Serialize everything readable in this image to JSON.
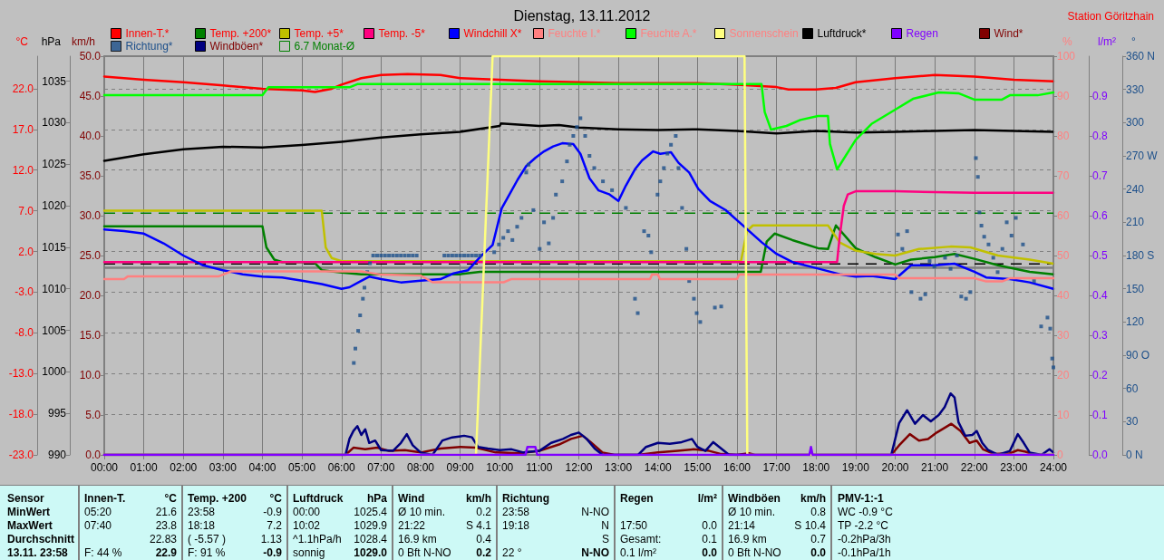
{
  "chart_data": [
    {
      "type": "line",
      "title": "Dienstag, 13.11.2012",
      "subtitle": "Station Göritzhain",
      "ylabel": "°C",
      "y2label": "hPa",
      "y3label": "km/h",
      "xlim": [
        0,
        24
      ],
      "xticks": [
        {
          "value": 0,
          "label": "00:00"
        },
        {
          "value": 1,
          "label": "01:00"
        },
        {
          "value": 2,
          "label": "02:00"
        },
        {
          "value": 3,
          "label": "03:00"
        },
        {
          "value": 4,
          "label": "04:00"
        },
        {
          "value": 5,
          "label": "05:00"
        },
        {
          "value": 6,
          "label": "06:00"
        },
        {
          "value": 7,
          "label": "07:00"
        },
        {
          "value": 8,
          "label": "08:00"
        },
        {
          "value": 9,
          "label": "09:00"
        },
        {
          "value": 10,
          "label": "10:00"
        },
        {
          "value": 11,
          "label": "11:00"
        },
        {
          "value": 12,
          "label": "12:00"
        },
        {
          "value": 13,
          "label": "13:00"
        },
        {
          "value": 14,
          "label": "14:00"
        },
        {
          "value": 15,
          "label": "15:00"
        },
        {
          "value": 16,
          "label": "16:00"
        },
        {
          "value": 17,
          "label": "17:00"
        },
        {
          "value": 18,
          "label": "18:00"
        },
        {
          "value": 19,
          "label": "19:00"
        },
        {
          "value": 20,
          "label": "20:00"
        },
        {
          "value": 21,
          "label": "21:00"
        },
        {
          "value": 22,
          "label": "22:00"
        },
        {
          "value": 23,
          "label": "23:00"
        },
        {
          "value": 24,
          "label": "24:00"
        }
      ],
      "ylim": [
        -23,
        26
      ],
      "yticks": [
        {
          "value": -23,
          "label": "-23.0"
        },
        {
          "value": -18,
          "label": "-18.0"
        },
        {
          "value": -13,
          "label": "-13.0"
        },
        {
          "value": -8,
          "label": "-8.0"
        },
        {
          "value": -3,
          "label": "-3.0"
        },
        {
          "value": 2,
          "label": "2.0"
        },
        {
          "value": 7,
          "label": "7.0"
        },
        {
          "value": 12,
          "label": "12.0"
        },
        {
          "value": 17,
          "label": "17.0"
        },
        {
          "value": 22,
          "label": "22.0"
        }
      ],
      "y2lim": [
        990,
        1038
      ],
      "y2ticks": [
        990,
        995,
        1000,
        1005,
        1010,
        1015,
        1020,
        1025,
        1030,
        1035
      ],
      "y3lim": [
        0,
        50
      ],
      "y3ticks": [
        {
          "value": 0,
          "label": "0.0"
        },
        {
          "value": 5,
          "label": "5.0"
        },
        {
          "value": 10,
          "label": "10.0"
        },
        {
          "value": 15,
          "label": "15.0"
        },
        {
          "value": 20,
          "label": "20.0"
        },
        {
          "value": 25,
          "label": "25.0"
        },
        {
          "value": 30,
          "label": "30.0"
        },
        {
          "value": 35,
          "label": "35.0"
        },
        {
          "value": 40,
          "label": "40.0"
        },
        {
          "value": 45,
          "label": "45.0"
        },
        {
          "value": 50,
          "label": "50.0"
        }
      ],
      "grid": true,
      "legend": "top",
      "marker": "none",
      "series": [
        {
          "name": "Innen-T.*",
          "color": "#ff0000",
          "x": [
            0,
            1,
            2,
            3,
            4,
            5,
            5.33,
            5.75,
            6,
            6.5,
            7,
            7.67,
            8.5,
            9,
            10,
            11,
            12,
            13,
            14,
            15,
            16,
            17,
            17.3,
            18,
            18.5,
            19,
            20,
            21,
            22,
            23,
            24
          ],
          "values": [
            23.5,
            23.1,
            22.8,
            22.4,
            22.0,
            21.8,
            21.6,
            22.0,
            22.5,
            23.3,
            23.7,
            23.8,
            23.7,
            23.3,
            23.1,
            22.9,
            22.8,
            22.7,
            22.7,
            22.7,
            22.5,
            22.2,
            21.9,
            21.9,
            22.1,
            22.8,
            23.3,
            23.7,
            23.5,
            23.1,
            22.9
          ]
        },
        {
          "name": "Temp. +200*",
          "color": "#008000",
          "x": [
            0,
            4,
            4.1,
            4.3,
            4.5,
            5.3,
            5.5,
            6,
            6.5,
            9,
            9.5,
            12,
            14,
            16,
            16.6,
            16.75,
            16.95,
            17.4,
            18.05,
            18.3,
            18.5,
            19,
            19.5,
            20,
            20.4,
            21,
            21.5,
            22,
            22.6,
            23.4,
            24
          ],
          "values": [
            5.1,
            5.1,
            2.5,
            1.0,
            0.7,
            0.7,
            -0.3,
            -0.6,
            -0.8,
            -0.8,
            -0.5,
            -0.5,
            -0.5,
            -0.5,
            -0.5,
            3.2,
            4.2,
            3.4,
            2.4,
            2.3,
            5.2,
            2.4,
            1.3,
            0.4,
            1.0,
            1.3,
            1.7,
            1.1,
            0.3,
            -0.5,
            -0.8
          ]
        },
        {
          "name": "Temp. +5*",
          "color": "#c0c000",
          "x": [
            0,
            5.5,
            5.6,
            5.75,
            6,
            9,
            12,
            16.1,
            16.25,
            16.4,
            17,
            18,
            18.3,
            18.4,
            18.6,
            19,
            19.5,
            20,
            20.6,
            21.4,
            21.9,
            22.6,
            23.4,
            24
          ],
          "values": [
            7.0,
            7.0,
            2.5,
            1.2,
            0.8,
            0.8,
            0.8,
            0.8,
            4.5,
            5.2,
            5.2,
            5.2,
            5.2,
            4.5,
            3.1,
            2.1,
            1.7,
            1.5,
            2.3,
            2.6,
            2.5,
            1.5,
            1.0,
            0.5
          ]
        },
        {
          "name": "Temp. -5*",
          "color": "#ff0080",
          "x": [
            0,
            18.53,
            18.6,
            18.7,
            18.8,
            19,
            20,
            21,
            22,
            23,
            24
          ],
          "values": [
            0.7,
            0.7,
            4.0,
            7.6,
            9.0,
            9.4,
            9.4,
            9.3,
            9.2,
            9.2,
            9.2
          ]
        },
        {
          "name": "Windchill X*",
          "color": "#0000ff",
          "x": [
            0,
            0.5,
            1,
            1.5,
            2,
            2.5,
            3,
            3.5,
            4,
            4.5,
            5,
            5.5,
            6,
            6.2,
            6.5,
            6.7,
            7,
            7.5,
            8,
            8.5,
            8.83,
            9.2,
            9.52,
            9.82,
            10.05,
            10.21,
            10.45,
            10.67,
            10.9,
            11.12,
            11.35,
            11.58,
            11.86,
            12.04,
            12.27,
            12.5,
            12.78,
            13.0,
            13.19,
            13.42,
            13.6,
            13.88,
            14.06,
            14.33,
            14.52,
            14.79,
            15.02,
            15.32,
            15.71,
            16.17,
            16.63,
            17.0,
            17.4,
            18.05,
            18.6,
            19.0,
            19.4,
            20.0,
            20.4,
            21.0,
            21.5,
            22.0,
            22.3,
            22.9,
            23.4,
            24
          ],
          "values": [
            4.7,
            4.5,
            4.2,
            3.0,
            1.5,
            0.3,
            -0.3,
            -0.8,
            -1.1,
            -1.2,
            -1.6,
            -2.0,
            -2.6,
            -2.4,
            -1.6,
            -1.1,
            -1.4,
            -1.8,
            -1.6,
            -1.4,
            -0.7,
            -0.3,
            1.4,
            2.8,
            7.3,
            8.7,
            10.8,
            12.5,
            13.5,
            14.3,
            14.9,
            15.3,
            15.2,
            14.0,
            11.0,
            9.5,
            9.0,
            8.2,
            10.1,
            12.1,
            13.2,
            14.3,
            14.0,
            14.2,
            12.9,
            11.7,
            9.7,
            8.2,
            7.1,
            5.1,
            3.1,
            1.7,
            0.7,
            -0.1,
            -0.8,
            -1.1,
            -1.0,
            -1.4,
            0.3,
            0.3,
            0.5,
            -0.5,
            -1.2,
            -1.4,
            -1.8,
            -2.6
          ]
        },
        {
          "name": "Luftdruck*",
          "color": "#000000",
          "axis": "y2",
          "x": [
            0,
            1,
            2,
            3,
            4,
            5,
            6,
            7,
            8,
            9,
            10,
            10.03,
            11,
            11.5,
            12,
            13,
            14,
            15,
            16,
            17,
            18,
            19,
            20,
            21,
            22,
            23,
            24
          ],
          "values": [
            1025.4,
            1026.2,
            1026.8,
            1027.1,
            1027.0,
            1027.3,
            1027.7,
            1028.2,
            1028.6,
            1028.9,
            1029.6,
            1029.9,
            1029.6,
            1029.7,
            1029.4,
            1029.2,
            1029.1,
            1029.2,
            1029.0,
            1028.7,
            1029.0,
            1028.8,
            1028.9,
            1029.0,
            1029.1,
            1029.0,
            1028.9
          ]
        },
        {
          "name": "Wind*",
          "color": "#800000",
          "axis": "y3",
          "x": [
            0,
            6.1,
            6.3,
            6.6,
            6.9,
            7.2,
            7.6,
            8.0,
            8.5,
            9.0,
            9.4,
            9.9,
            10.5,
            11.0,
            11.5,
            11.8,
            12.1,
            12.3,
            12.6,
            12.9,
            13.5,
            14.0,
            14.5,
            14.9,
            15.3,
            15.6,
            16.0,
            16.3,
            16.45,
            19.9,
            20.1,
            20.37,
            20.6,
            20.83,
            21.05,
            21.25,
            21.42,
            21.65,
            21.88,
            22.06,
            22.22,
            22.5,
            22.9,
            23.1,
            23.3,
            23.5,
            24
          ],
          "values": [
            0,
            0,
            0.9,
            0.7,
            0.9,
            0.5,
            0.6,
            0.3,
            0.8,
            1.0,
            0.9,
            0.3,
            0.2,
            0.5,
            1.3,
            2.0,
            2.4,
            1.6,
            0.3,
            0,
            0,
            0.3,
            0.5,
            0.7,
            0.5,
            0.1,
            0,
            0.2,
            0,
            0,
            1.2,
            2.6,
            1.8,
            2.0,
            2.8,
            3.4,
            3.9,
            3.0,
            1.5,
            1.8,
            0.7,
            0.1,
            0.2,
            0.6,
            0.4,
            0,
            0
          ]
        },
        {
          "name": "Windböen*",
          "color": "#000080",
          "axis": "y3",
          "x": [
            0,
            6.1,
            6.2,
            6.3,
            6.4,
            6.5,
            6.6,
            6.7,
            6.85,
            7.0,
            7.3,
            7.5,
            7.65,
            7.8,
            8.0,
            8.3,
            8.55,
            8.8,
            9.1,
            9.3,
            9.45,
            9.7,
            10.0,
            10.3,
            10.6,
            11.0,
            11.3,
            11.6,
            11.8,
            12.0,
            12.2,
            12.4,
            12.6,
            13.5,
            13.7,
            14.0,
            14.3,
            14.6,
            14.86,
            15.0,
            15.2,
            15.4,
            15.6,
            15.8,
            19.9,
            20.1,
            20.3,
            20.5,
            20.7,
            20.9,
            21.1,
            21.25,
            21.4,
            21.5,
            21.6,
            21.77,
            21.95,
            22.06,
            22.2,
            22.35,
            22.6,
            22.9,
            23.1,
            23.25,
            23.4,
            23.7,
            23.9,
            24
          ],
          "values": [
            0,
            0,
            2.0,
            3.0,
            3.6,
            2.5,
            3.2,
            1.5,
            1.8,
            0.6,
            0.5,
            1.5,
            2.6,
            1.2,
            0.3,
            0,
            1.8,
            2.2,
            2.4,
            2.2,
            1.0,
            0.8,
            0.6,
            0.7,
            0.3,
            0.5,
            1.5,
            2.0,
            2.5,
            2.8,
            2.0,
            0.8,
            0,
            0,
            1.0,
            1.5,
            1.4,
            1.6,
            2.0,
            1.0,
            0.5,
            1.6,
            0.8,
            0,
            0,
            4.0,
            5.6,
            3.9,
            5.0,
            4.2,
            5.0,
            6.0,
            7.7,
            7.2,
            4.1,
            2.4,
            2.5,
            3.0,
            1.5,
            0.6,
            0,
            0.5,
            2.6,
            1.5,
            0.3,
            0,
            0.7,
            0.3
          ]
        }
      ],
      "ref_lines": [
        {
          "axis": "y",
          "value": 6.7,
          "label": "6.7 Monat-Ø",
          "color": "#008000",
          "line_style": "dashed"
        },
        {
          "axis": "y",
          "value": 0,
          "color": "#808080"
        },
        {
          "axis": "y2",
          "value": 1013,
          "color": "#000000",
          "line_style": "dashed"
        }
      ],
      "annotations": [
        "Sensor\nMinWert\nMaxWert\nDurchschnitt\n13.11. 23:58",
        "Innen-T.\n05:20\n07:40\n\nF: 44 %",
        "°C\n21.6\n23.8\n22.83\n22.9",
        "Temp. +200\n23:58\n18:18\n( -5.57 )\nF: 91 %",
        "°C\n-0.9\n7.2\n1.13\n-0.9",
        "Luftdruck\n00:00\n10:02\n^1.1hPa/h\nsonnig",
        "hPa\n1025.4\n1029.9\n1028.4\n1029.0",
        "Wind\nØ 10 min.\n21:22\n16.9 km\n0 Bft N-NO",
        "km/h\n0.2\nS 4.1\n0.4\n0.2",
        "Richtung\n23:58\n19:18\n\n22 °",
        "\nN-NO\nN\nS\nN-NO",
        "Regen\n\n17:50\nGesamt:\n0.1 l/m²",
        "l/m²\n\n0.0\n0.1\n0.0",
        "Windböen\nØ 10 min.\n21:14\n16.9 km\n0 Bft N-NO",
        "km/h\n0.8\nS 10.4\n0.7\n0.0",
        "PMV-1:-1\nWC -0.9 °C\nTP -2.2 °C\n-0.2hPa/3h\n-0.1hPa/1h"
      ]
    },
    {
      "type": "line",
      "ylabel": "%",
      "y2label": "l/m²",
      "y3label": "°",
      "tick_labels": "y",
      "legend": "top",
      "marker": "none",
      "xlim": [
        0,
        24
      ],
      "ylim": [
        0,
        100
      ],
      "yticks": [
        0,
        10,
        20,
        30,
        40,
        50,
        60,
        70,
        80,
        90,
        100
      ],
      "y2lim": [
        0,
        1
      ],
      "y2ticks": [
        {
          "value": 0,
          "label": "0.0"
        },
        0.1,
        0.2,
        0.3,
        0.4,
        0.5,
        0.6,
        0.7,
        0.8,
        0.9
      ],
      "y3lim": [
        0,
        360
      ],
      "y3ticks": [
        {
          "value": 0,
          "label": "0 N"
        },
        30,
        60,
        {
          "value": 90,
          "label": "90 O"
        },
        120,
        150,
        {
          "value": 180,
          "label": "180 S"
        },
        210,
        240,
        {
          "value": 270,
          "label": "270 W"
        },
        300,
        330,
        {
          "value": 360,
          "label": "360 N"
        }
      ],
      "series": [
        {
          "name": "Feuchte I.*",
          "color": "#ff8080",
          "x": [
            0,
            0.5,
            0.6,
            2.9,
            3.2,
            6.5,
            7.0,
            8.0,
            8.3,
            10.1,
            10.3,
            13.8,
            13.85,
            14.0,
            14.05,
            16.0,
            16.05,
            18,
            20,
            20.1,
            22.0,
            22.3,
            22.7,
            22.9,
            24
          ],
          "values": [
            44.1,
            44.1,
            44.8,
            44.8,
            46.0,
            46.0,
            45.2,
            45.0,
            43.3,
            43.3,
            44.1,
            44.1,
            45.2,
            45.2,
            44.1,
            44.1,
            45.2,
            45.2,
            45.2,
            44.3,
            44.3,
            43.5,
            43.5,
            44.3,
            44.3
          ]
        },
        {
          "name": "Feuchte A.*",
          "color": "#00ff00",
          "x": [
            0,
            4,
            4.15,
            6.2,
            6.4,
            9,
            10,
            12,
            14,
            16,
            16.62,
            16.7,
            16.86,
            17.25,
            17.6,
            18.05,
            18.3,
            18.35,
            18.53,
            19.0,
            19.4,
            20.0,
            20.45,
            21.1,
            21.6,
            22.0,
            22.7,
            22.9,
            23.6,
            24
          ],
          "values": [
            90.2,
            90.2,
            92.2,
            92.2,
            93.0,
            93.0,
            93.0,
            93.0,
            93.0,
            93.0,
            93.0,
            86,
            81.6,
            82.5,
            84.0,
            85.0,
            85.0,
            78,
            71.6,
            79,
            83,
            86.6,
            89.3,
            90.9,
            90.7,
            89.1,
            89.1,
            90.2,
            90.2,
            90.9
          ]
        },
        {
          "name": "Sonnenschein",
          "color": "#ffff80",
          "x": [
            0,
            9.4,
            9.82,
            16.19,
            16.26,
            24
          ],
          "values": [
            0,
            0,
            100,
            100,
            0,
            0
          ]
        },
        {
          "name": "Regen",
          "color": "#8000ff",
          "axis": "y2",
          "x": [
            0,
            10.65,
            10.7,
            10.8,
            10.9,
            10.95,
            17.83,
            17.87,
            17.91,
            24
          ],
          "values": [
            0,
            0,
            0.02,
            0.02,
            0.02,
            0,
            0,
            0.02,
            0,
            0
          ]
        },
        {
          "name": "Richtung*",
          "color": "#1c4f8a",
          "axis": "y3",
          "type": "scatter",
          "marker": "square",
          "x": [
            6.31,
            6.35,
            6.42,
            6.47,
            6.54,
            6.58,
            6.65,
            6.72,
            6.8,
            6.9,
            7.0,
            7.1,
            7.2,
            7.3,
            7.4,
            7.5,
            7.6,
            7.7,
            7.8,
            7.9,
            8.6,
            8.7,
            8.8,
            8.9,
            9.0,
            9.1,
            9.2,
            9.3,
            9.4,
            9.5,
            9.86,
            9.98,
            10.09,
            10.21,
            10.32,
            10.44,
            10.55,
            10.67,
            10.73,
            10.85,
            11.01,
            11.12,
            11.24,
            11.35,
            11.42,
            11.58,
            11.7,
            11.77,
            11.86,
            11.95,
            12.04,
            12.16,
            12.27,
            12.39,
            12.61,
            12.84,
            13.19,
            13.42,
            13.49,
            13.65,
            13.76,
            13.83,
            13.99,
            14.06,
            14.15,
            14.24,
            14.33,
            14.45,
            14.52,
            14.61,
            14.72,
            14.79,
            14.91,
            14.98,
            15.07,
            15.44,
            15.6,
            20.07,
            20.18,
            20.3,
            20.41,
            20.64,
            20.76,
            20.87,
            20.99,
            21.26,
            21.4,
            21.56,
            21.67,
            21.79,
            21.9,
            22.04,
            22.09,
            22.13,
            22.18,
            22.25,
            22.36,
            22.48,
            22.59,
            22.71,
            22.82,
            22.94,
            23.05,
            23.23,
            23.51,
            23.69,
            23.85,
            23.92,
            23.97,
            24
          ],
          "values": [
            83,
            96,
            112,
            126,
            141,
            151,
            165,
            173,
            180,
            180,
            180,
            180,
            180,
            180,
            180,
            180,
            180,
            180,
            180,
            180,
            180,
            180,
            180,
            180,
            180,
            180,
            180,
            180,
            180,
            180,
            183,
            190,
            196,
            202,
            194,
            206,
            214,
            255,
            262,
            221,
            186,
            210,
            191,
            214,
            235,
            247,
            265,
            280,
            288,
            296,
            304,
            288,
            270,
            259,
            247,
            239,
            223,
            141,
            128,
            202,
            198,
            183,
            235,
            247,
            259,
            272,
            280,
            288,
            259,
            223,
            186,
            157,
            141,
            128,
            120,
            133,
            134,
            199,
            186,
            202,
            147,
            141,
            145,
            175,
            170,
            178,
            168,
            180,
            143,
            141,
            147,
            268,
            251,
            219,
            207,
            197,
            190,
            178,
            165,
            186,
            210,
            198,
            214,
            190,
            157,
            116,
            124,
            114,
            87,
            79
          ]
        }
      ]
    }
  ]
}
